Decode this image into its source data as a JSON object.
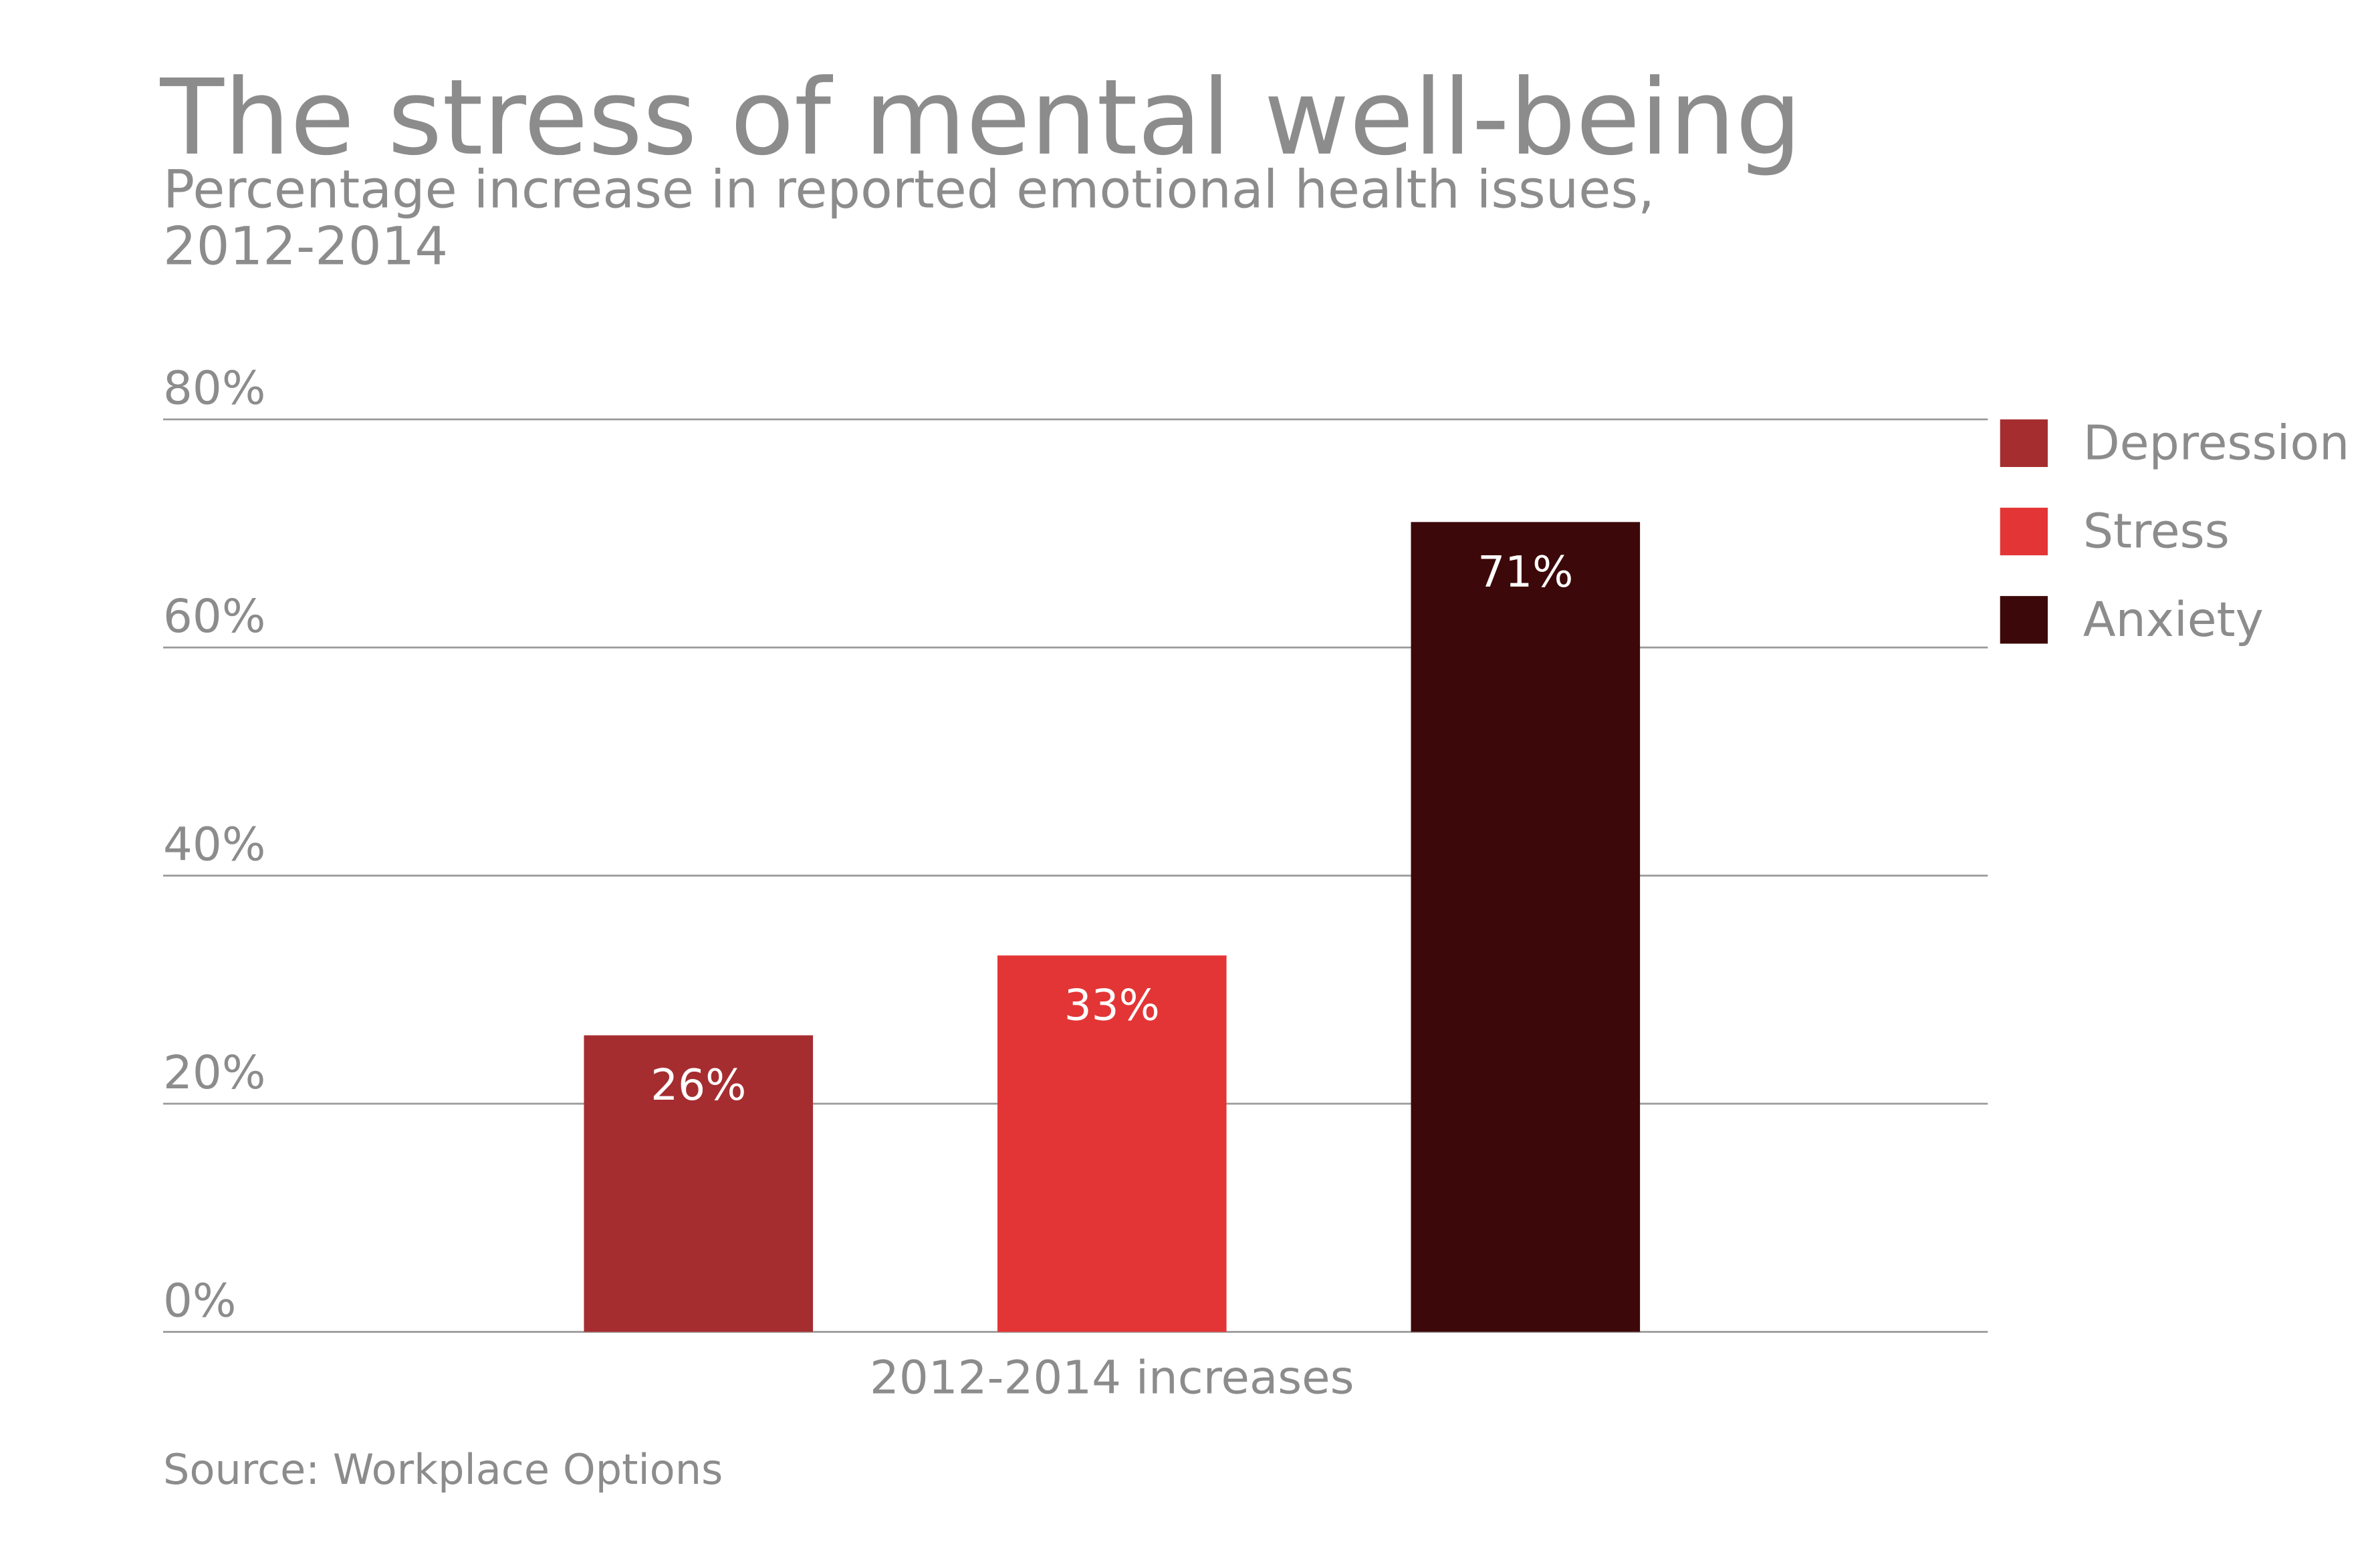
{
  "chart_data": {
    "type": "bar",
    "title": "The stress of mental well-being",
    "subtitle": [
      "Percentage increase in reported emotional health issues,",
      "2012-2014"
    ],
    "categories": [
      "2012-2014 increases"
    ],
    "series": [
      {
        "name": "Depression",
        "color": "#a52d30",
        "values": [
          26
        ],
        "value_labels": [
          "26%"
        ]
      },
      {
        "name": "Stress",
        "color": "#e33535",
        "values": [
          33
        ],
        "value_labels": [
          "33%"
        ]
      },
      {
        "name": "Anxiety",
        "color": "#3d0809",
        "values": [
          71
        ],
        "value_labels": [
          "71%"
        ]
      }
    ],
    "ylim": [
      0,
      80
    ],
    "yticks": [
      {
        "value": 0,
        "label": "0%"
      },
      {
        "value": 20,
        "label": "20%"
      },
      {
        "value": 40,
        "label": "40%"
      },
      {
        "value": 60,
        "label": "60%"
      },
      {
        "value": 80,
        "label": "80%"
      }
    ],
    "grid": true,
    "legend": "right",
    "source": "Source: Workplace Options"
  }
}
